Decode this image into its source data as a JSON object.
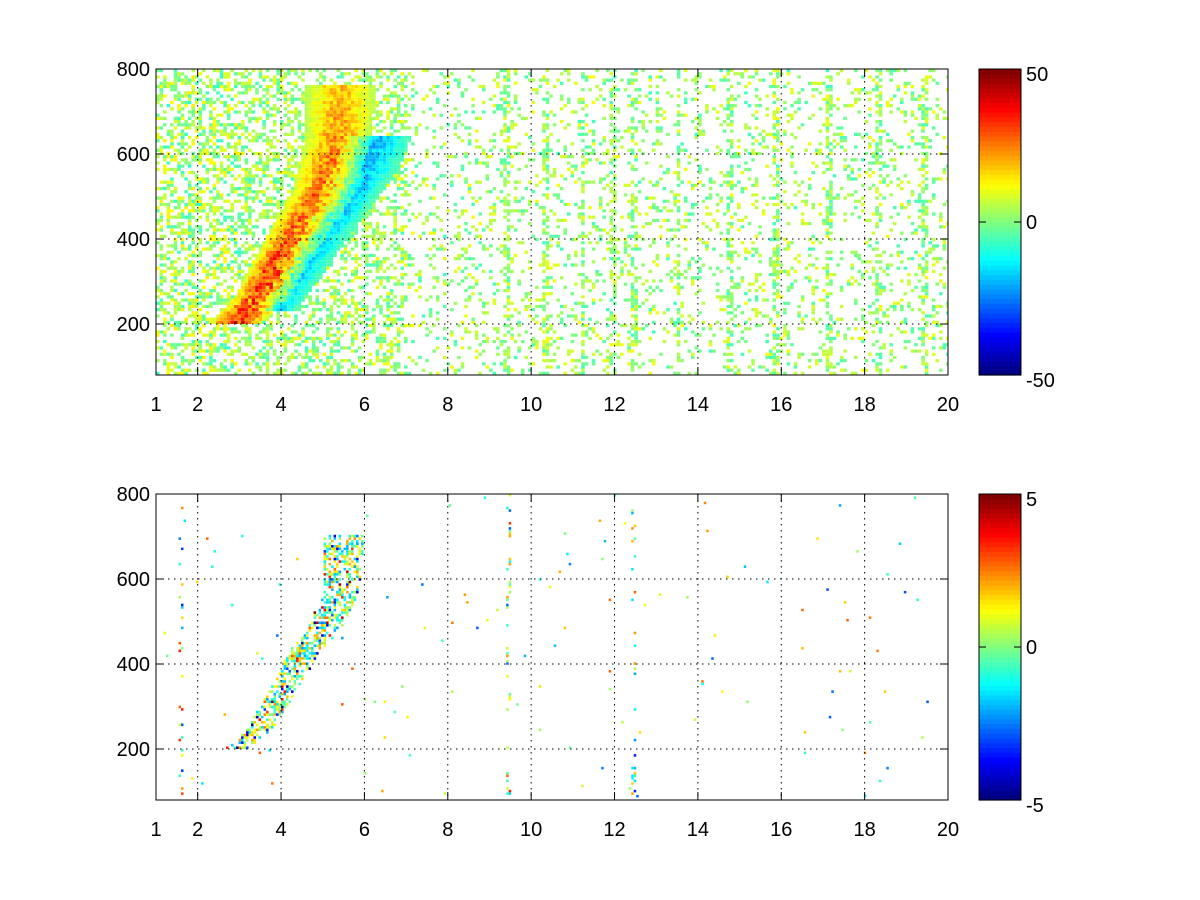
{
  "chart_data": [
    {
      "type": "heatmap",
      "title": "",
      "xlabel": "",
      "ylabel": "",
      "xlim": [
        1,
        20
      ],
      "ylim": [
        80,
        800
      ],
      "xticks": [
        1,
        2,
        4,
        6,
        8,
        10,
        12,
        14,
        16,
        18,
        20
      ],
      "yticks": [
        200,
        400,
        600,
        800
      ],
      "grid": true,
      "colormap": "jet",
      "colorbar": {
        "range": [
          -50,
          50
        ],
        "ticks": [
          -50,
          0,
          50
        ],
        "placement": "right"
      },
      "features": [
        {
          "description": "positive ridge",
          "sign": 1,
          "points": [
            [
              2.9,
              200
            ],
            [
              3.5,
              260
            ],
            [
              4.0,
              350
            ],
            [
              4.5,
              430
            ],
            [
              5.0,
              510
            ],
            [
              5.3,
              620
            ],
            [
              5.4,
              760
            ]
          ],
          "peak": 42
        },
        {
          "description": "negative ridge",
          "sign": -1,
          "points": [
            [
              3.7,
              230
            ],
            [
              4.4,
              330
            ],
            [
              5.0,
              420
            ],
            [
              5.5,
              490
            ],
            [
              6.0,
              560
            ],
            [
              6.3,
              640
            ]
          ],
          "peak": -20
        }
      ],
      "vertical_streaks_x": [
        1.4,
        1.8,
        2.3,
        2.7,
        3.2,
        3.6,
        9.4,
        10.3,
        11.2,
        11.9,
        12.4,
        13.5,
        14.7,
        15.8,
        17.1,
        18.3,
        19.4
      ]
    },
    {
      "type": "heatmap",
      "title": "",
      "xlabel": "",
      "ylabel": "",
      "xlim": [
        1,
        20
      ],
      "ylim": [
        80,
        800
      ],
      "xticks": [
        1,
        2,
        4,
        6,
        8,
        10,
        12,
        14,
        16,
        18,
        20
      ],
      "yticks": [
        200,
        400,
        600,
        800
      ],
      "grid": true,
      "colormap": "jet",
      "colorbar": {
        "range": [
          -5,
          5
        ],
        "ticks": [
          -5,
          0,
          5
        ],
        "placement": "right"
      },
      "features": [
        {
          "description": "scattered cluster",
          "points": [
            [
              2.9,
              195
            ],
            [
              3.5,
              250
            ],
            [
              4.0,
              330
            ],
            [
              4.5,
              420
            ],
            [
              5.0,
              480
            ],
            [
              5.4,
              560
            ],
            [
              5.5,
              700
            ]
          ],
          "amplitude": 5
        }
      ],
      "vertical_streaks_x": [
        1.55,
        9.45,
        12.45
      ]
    }
  ]
}
